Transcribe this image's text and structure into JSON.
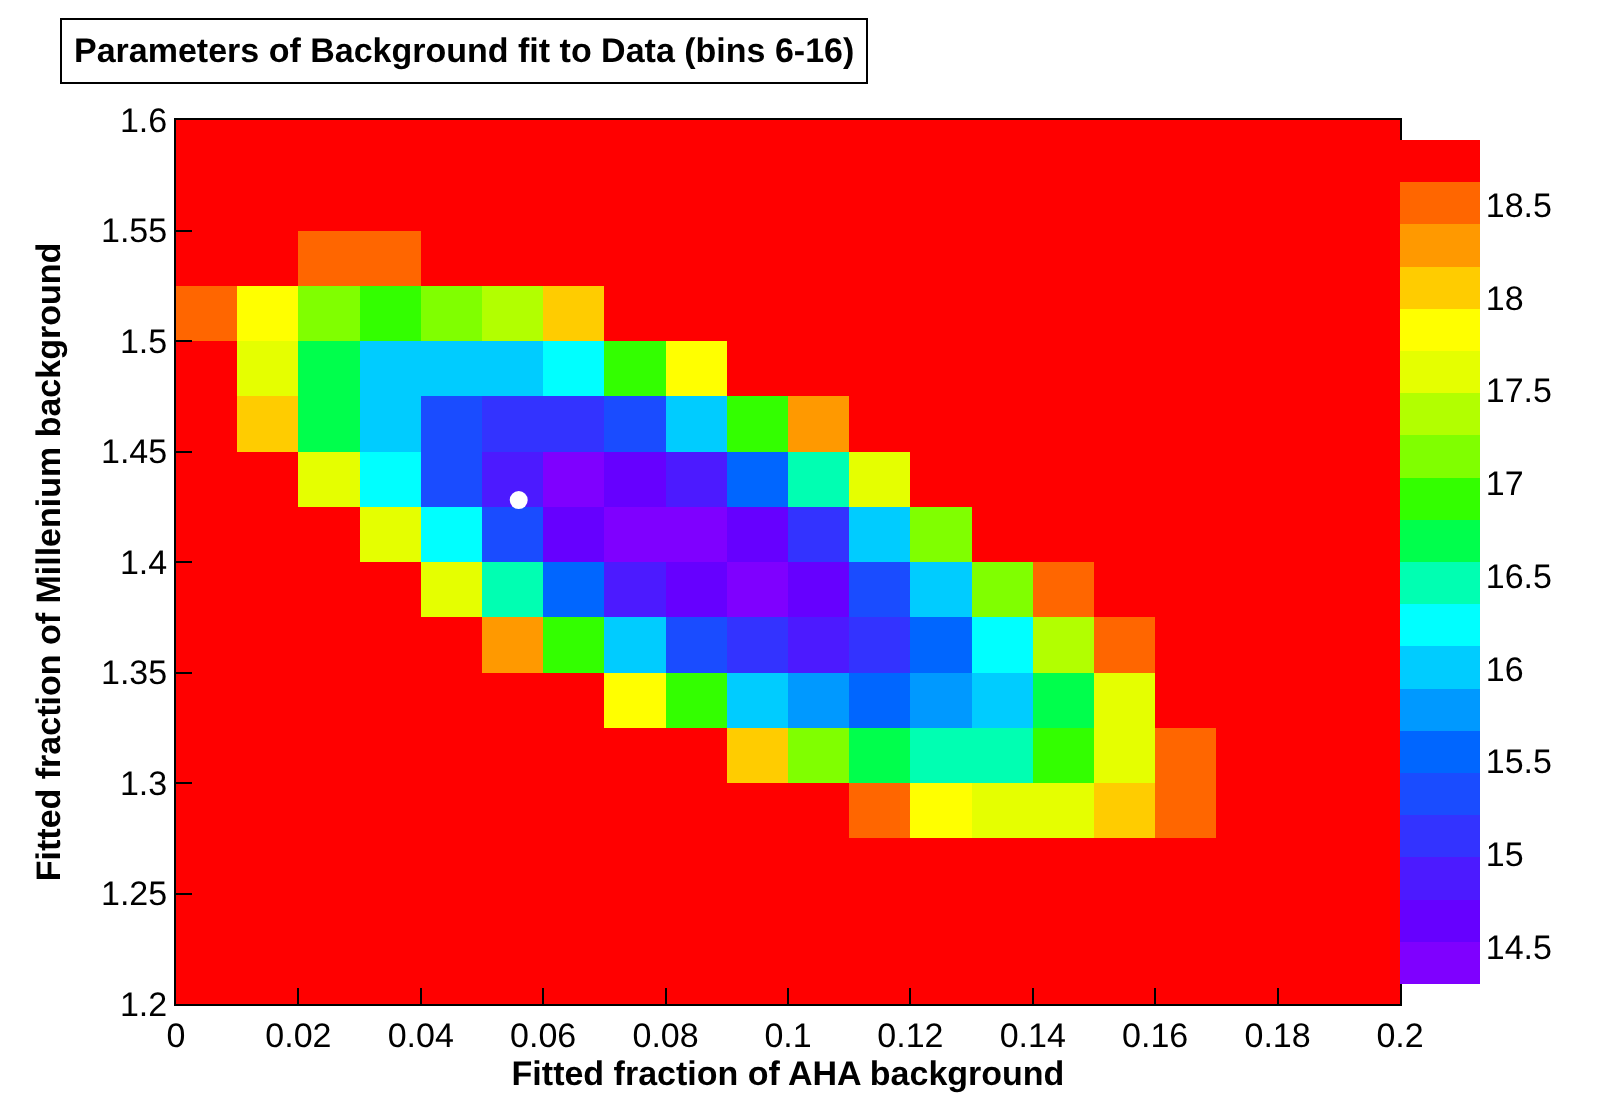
{
  "chart_data": {
    "type": "heatmap",
    "title": "Parameters of Background fit to Data (bins 6-16)",
    "xlabel": "Fitted fraction of AHA background",
    "ylabel": "Fitted fraction of Millenium background",
    "x": [
      0.005,
      0.015,
      0.025,
      0.035,
      0.045,
      0.055,
      0.065,
      0.075,
      0.085,
      0.095,
      0.105,
      0.115,
      0.125,
      0.135,
      0.145,
      0.155,
      0.165,
      0.175,
      0.185,
      0.195
    ],
    "y": [
      1.5875,
      1.5625,
      1.5375,
      1.5125,
      1.4875,
      1.4625,
      1.4375,
      1.4125,
      1.3875,
      1.3625,
      1.3375,
      1.3125,
      1.2875,
      1.2625,
      1.2375,
      1.2125
    ],
    "cells": [
      [
        18.8,
        18.8,
        18.8,
        18.8,
        18.8,
        18.8,
        18.8,
        18.8,
        18.8,
        18.8,
        18.8,
        18.8,
        18.8,
        18.8,
        18.8,
        18.8,
        18.8,
        18.8,
        18.8,
        18.8
      ],
      [
        18.8,
        18.8,
        18.8,
        18.8,
        18.8,
        18.8,
        18.8,
        18.8,
        18.8,
        18.8,
        18.8,
        18.8,
        18.8,
        18.8,
        18.8,
        18.8,
        18.8,
        18.8,
        18.8,
        18.8
      ],
      [
        18.8,
        18.7,
        18.5,
        18.6,
        18.8,
        18.8,
        18.8,
        18.8,
        18.8,
        18.8,
        18.8,
        18.8,
        18.8,
        18.8,
        18.8,
        18.8,
        18.8,
        18.8,
        18.8,
        18.8
      ],
      [
        18.6,
        17.8,
        17.2,
        17.0,
        17.1,
        17.4,
        18.1,
        18.8,
        18.8,
        18.8,
        18.8,
        18.8,
        18.8,
        18.8,
        18.8,
        18.8,
        18.8,
        18.8,
        18.8,
        18.8
      ],
      [
        18.7,
        17.6,
        16.7,
        16.1,
        15.9,
        15.9,
        16.3,
        16.9,
        17.9,
        18.8,
        18.8,
        18.8,
        18.8,
        18.8,
        18.8,
        18.8,
        18.8,
        18.8,
        18.8,
        18.8
      ],
      [
        18.8,
        18.0,
        16.8,
        15.9,
        15.3,
        15.0,
        15.1,
        15.4,
        16.1,
        17.0,
        18.3,
        18.8,
        18.8,
        18.8,
        18.8,
        18.8,
        18.8,
        18.8,
        18.8,
        18.8
      ],
      [
        18.8,
        18.8,
        17.6,
        16.3,
        15.4,
        14.8,
        14.5,
        14.6,
        14.9,
        15.5,
        16.4,
        17.6,
        18.8,
        18.8,
        18.8,
        18.8,
        18.8,
        18.8,
        18.8,
        18.8
      ],
      [
        18.8,
        18.8,
        18.8,
        17.5,
        16.2,
        15.3,
        14.7,
        14.4,
        14.4,
        14.7,
        15.2,
        16.1,
        17.2,
        18.7,
        18.8,
        18.8,
        18.8,
        18.8,
        18.8,
        18.8
      ],
      [
        18.8,
        18.8,
        18.8,
        18.8,
        17.7,
        16.5,
        15.5,
        14.9,
        14.6,
        14.5,
        14.7,
        15.3,
        16.0,
        17.1,
        18.5,
        18.8,
        18.8,
        18.8,
        18.8,
        18.8
      ],
      [
        18.8,
        18.8,
        18.8,
        18.8,
        18.8,
        18.3,
        17.0,
        16.1,
        15.4,
        15.0,
        14.9,
        15.1,
        15.5,
        16.3,
        17.3,
        18.6,
        18.8,
        18.8,
        18.8,
        18.8
      ],
      [
        18.8,
        18.8,
        18.8,
        18.8,
        18.8,
        18.8,
        18.8,
        17.9,
        16.9,
        16.1,
        15.7,
        15.5,
        15.7,
        16.1,
        16.8,
        17.7,
        18.8,
        18.8,
        18.8,
        18.8
      ],
      [
        18.8,
        18.8,
        18.8,
        18.8,
        18.8,
        18.8,
        18.8,
        18.8,
        18.8,
        18.0,
        17.2,
        16.7,
        16.5,
        16.5,
        16.9,
        17.5,
        18.4,
        18.8,
        18.8,
        18.8
      ],
      [
        18.8,
        18.8,
        18.8,
        18.8,
        18.8,
        18.8,
        18.8,
        18.8,
        18.8,
        18.8,
        18.8,
        18.5,
        17.9,
        17.7,
        17.7,
        18.0,
        18.6,
        18.8,
        18.8,
        18.8
      ],
      [
        18.8,
        18.8,
        18.8,
        18.8,
        18.8,
        18.8,
        18.8,
        18.8,
        18.8,
        18.8,
        18.8,
        18.8,
        18.8,
        18.8,
        18.8,
        18.8,
        18.8,
        18.8,
        18.8,
        18.8
      ],
      [
        18.8,
        18.8,
        18.8,
        18.8,
        18.8,
        18.8,
        18.8,
        18.8,
        18.8,
        18.8,
        18.8,
        18.8,
        18.8,
        18.8,
        18.8,
        18.8,
        18.8,
        18.8,
        18.8,
        18.8
      ],
      [
        18.8,
        18.8,
        18.8,
        18.8,
        18.8,
        18.8,
        18.8,
        18.8,
        18.8,
        18.8,
        18.8,
        18.8,
        18.8,
        18.8,
        18.8,
        18.8,
        18.8,
        18.8,
        18.8,
        18.8
      ]
    ],
    "clim": [
      14.3,
      18.85
    ],
    "cticks": [
      14.5,
      15,
      15.5,
      16,
      16.5,
      17,
      17.5,
      18,
      18.5
    ],
    "xlim": [
      0,
      0.2
    ],
    "xticks": [
      0,
      0.02,
      0.04,
      0.06,
      0.08,
      0.1,
      0.12,
      0.14,
      0.16,
      0.18,
      0.2
    ],
    "ylim": [
      1.2,
      1.6
    ],
    "yticks": [
      1.2,
      1.25,
      1.3,
      1.35,
      1.4,
      1.45,
      1.5,
      1.55,
      1.6
    ],
    "series": [
      {
        "type": "scatter",
        "color": "#ffffff",
        "x": [
          0.056
        ],
        "values": [
          1.428
        ]
      }
    ],
    "legend": false
  }
}
